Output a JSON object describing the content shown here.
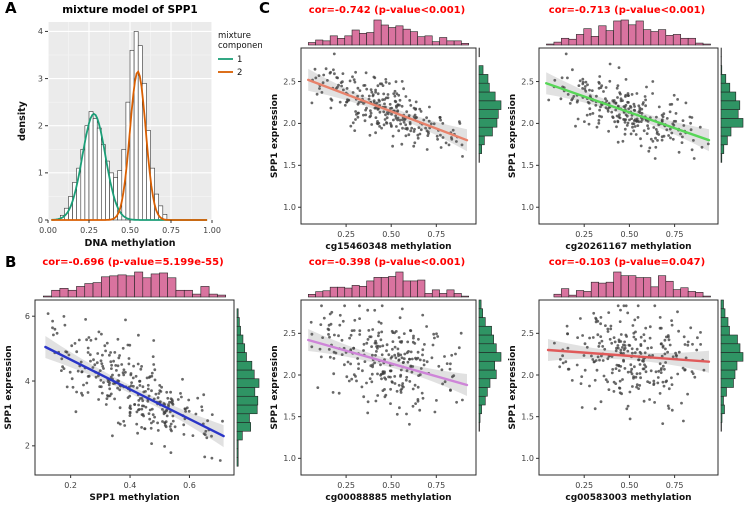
{
  "figure": {
    "labels": {
      "a": "A",
      "b": "B",
      "c": "C"
    }
  },
  "chart_data": [
    {
      "id": "panelA",
      "type": "histogram-density-mixture",
      "title": "mixture model of SPP1",
      "xlabel": "DNA methylation",
      "ylabel": "density",
      "xlim": [
        0,
        1
      ],
      "ylim": [
        0,
        4.2
      ],
      "x_ticks": [
        0,
        0.25,
        0.5,
        0.75,
        1
      ],
      "x_tick_labels": [
        "0.00",
        "0.25",
        "0.50",
        "0.75",
        "1.00"
      ],
      "y_ticks": [
        0,
        1,
        2,
        3,
        4
      ],
      "y_tick_labels": [
        "0",
        "1",
        "2",
        "3",
        "4"
      ],
      "panel_bg": "#EBEBEB",
      "bar_fill": "#FFFFFF",
      "bar_stroke": "#333333",
      "histogram": {
        "bin_start": 0.075,
        "bin_width": 0.025,
        "heights": [
          0.1,
          0.25,
          0.5,
          0.8,
          1.1,
          1.5,
          2.0,
          2.3,
          2.15,
          1.95,
          1.6,
          1.25,
          1.0,
          0.9,
          1.05,
          1.5,
          2.5,
          3.6,
          4.0,
          3.7,
          2.9,
          1.9,
          1.1,
          0.55,
          0.3,
          0.12
        ]
      },
      "legend_title": [
        "mixture",
        "component"
      ],
      "components": [
        {
          "label": "1",
          "color": "#1B9E77",
          "mean": 0.28,
          "sd": 0.07,
          "peak": 2.25
        },
        {
          "label": "2",
          "color": "#D95F02",
          "mean": 0.548,
          "sd": 0.048,
          "peak": 3.15
        }
      ]
    },
    {
      "id": "panelB",
      "type": "scatter-marginals",
      "title": "cor=-0.696 (p-value=5.199e-55)",
      "title_color": "#FF0000",
      "xlabel": "SPP1 methylation",
      "ylabel": "SPP1 expression",
      "xlim": [
        0.08,
        0.75
      ],
      "ylim": [
        1.1,
        6.5
      ],
      "x_ticks": [
        0.2,
        0.4,
        0.6
      ],
      "x_tick_labels": [
        "0.2",
        "0.4",
        "0.6"
      ],
      "y_ticks": [
        2,
        4,
        6
      ],
      "y_tick_labels": [
        "2",
        "4",
        "6"
      ],
      "points": {
        "n": 300,
        "seed": 11,
        "x_min": 0.1,
        "x_max": 0.73,
        "noise": 0.6
      },
      "line": {
        "color": "#2A35C8",
        "x1": 0.115,
        "y1": 5.05,
        "x2": 0.715,
        "y2": 2.3
      },
      "marginals": {
        "top_color": "#D9739F",
        "right_color": "#2F9464"
      }
    },
    {
      "id": "panelC1",
      "type": "scatter-marginals",
      "title": "cor=-0.742 (p-value<0.001)",
      "title_color": "#FF0000",
      "xlabel": "cg15460348 methylation",
      "ylabel": "SPP1 expression",
      "xlim": [
        0,
        0.97
      ],
      "ylim": [
        0.8,
        2.9
      ],
      "x_ticks": [
        0.25,
        0.5,
        0.75
      ],
      "x_tick_labels": [
        "0.25",
        "0.50",
        "0.75"
      ],
      "y_ticks": [
        1.0,
        1.5,
        2.0,
        2.5
      ],
      "y_tick_labels": [
        "1.0",
        "1.5",
        "2.0",
        "2.5"
      ],
      "points": {
        "n": 270,
        "seed": 23,
        "x_min": 0.03,
        "x_max": 0.93,
        "noise": 0.16
      },
      "line": {
        "color": "#E8826B",
        "x1": 0.04,
        "y1": 2.52,
        "x2": 0.92,
        "y2": 1.8
      },
      "marginals": {
        "top_color": "#D9739F",
        "right_color": "#2F9464"
      }
    },
    {
      "id": "panelC2",
      "type": "scatter-marginals",
      "title": "cor=-0.713 (p-value<0.001)",
      "title_color": "#FF0000",
      "xlabel": "cg20261167 methylation",
      "ylabel": "SPP1 expression",
      "xlim": [
        0,
        0.99
      ],
      "ylim": [
        0.8,
        2.9
      ],
      "x_ticks": [
        0.25,
        0.5,
        0.75
      ],
      "x_tick_labels": [
        "0.25",
        "0.50",
        "0.75"
      ],
      "y_ticks": [
        1.0,
        1.5,
        2.0,
        2.5
      ],
      "y_tick_labels": [
        "1.0",
        "1.5",
        "2.0",
        "2.5"
      ],
      "points": {
        "n": 270,
        "seed": 37,
        "x_min": 0.03,
        "x_max": 0.95,
        "noise": 0.16
      },
      "line": {
        "color": "#57D657",
        "x1": 0.04,
        "y1": 2.48,
        "x2": 0.94,
        "y2": 1.8
      },
      "marginals": {
        "top_color": "#D9739F",
        "right_color": "#2F9464"
      }
    },
    {
      "id": "panelC3",
      "type": "scatter-marginals",
      "title": "cor=-0.398 (p-value<0.001)",
      "title_color": "#FF0000",
      "xlabel": "cg00088885 methylation",
      "ylabel": "SPP1 expression",
      "xlim": [
        0,
        0.97
      ],
      "ylim": [
        0.8,
        2.9
      ],
      "x_ticks": [
        0.25,
        0.5,
        0.75
      ],
      "x_tick_labels": [
        "0.25",
        "0.50",
        "0.75"
      ],
      "y_ticks": [
        1.0,
        1.5,
        2.0,
        2.5
      ],
      "y_tick_labels": [
        "1.0",
        "1.5",
        "2.0",
        "2.5"
      ],
      "points": {
        "n": 270,
        "seed": 51,
        "x_min": 0.03,
        "x_max": 0.93,
        "noise": 0.28
      },
      "line": {
        "color": "#CE85D8",
        "x1": 0.04,
        "y1": 2.42,
        "x2": 0.92,
        "y2": 1.88
      },
      "marginals": {
        "top_color": "#D9739F",
        "right_color": "#2F9464"
      }
    },
    {
      "id": "panelC4",
      "type": "scatter-marginals",
      "title": "cor=-0.103 (p-value=0.047)",
      "title_color": "#FF0000",
      "xlabel": "cg00583003 methylation",
      "ylabel": "SPP1 expression",
      "xlim": [
        0,
        0.99
      ],
      "ylim": [
        0.8,
        2.9
      ],
      "x_ticks": [
        0.25,
        0.5,
        0.75
      ],
      "x_tick_labels": [
        "0.25",
        "0.50",
        "0.75"
      ],
      "y_ticks": [
        1.0,
        1.5,
        2.0,
        2.5
      ],
      "y_tick_labels": [
        "1.0",
        "1.5",
        "2.0",
        "2.5"
      ],
      "points": {
        "n": 270,
        "seed": 67,
        "x_min": 0.05,
        "x_max": 0.95,
        "noise": 0.28
      },
      "line": {
        "color": "#E05A5A",
        "x1": 0.05,
        "y1": 2.3,
        "x2": 0.94,
        "y2": 2.16
      },
      "marginals": {
        "top_color": "#D9739F",
        "right_color": "#2F9464"
      }
    }
  ]
}
